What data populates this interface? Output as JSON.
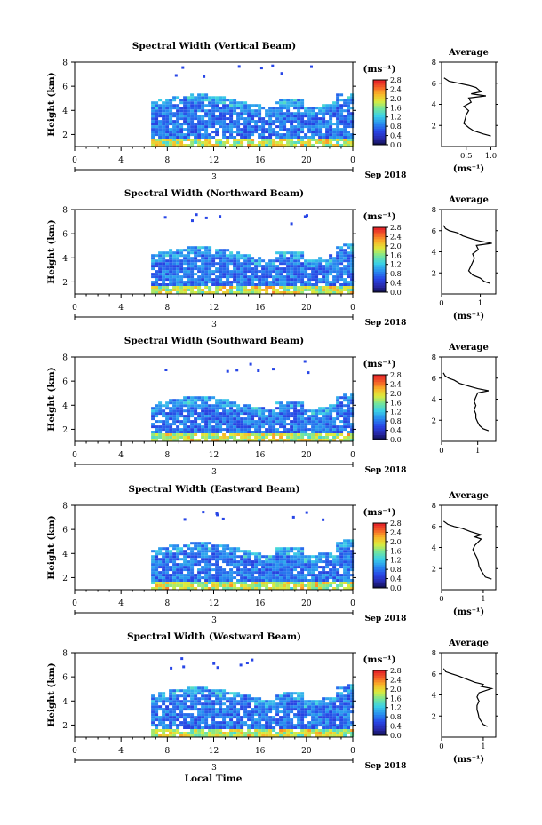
{
  "figure": {
    "xaxis_label": "Local Time",
    "date_label": "Sep 2018",
    "day_label": "3",
    "avg_title": "Average",
    "avg_unit": "(ms⁻¹)",
    "colorbar_unit": "(ms⁻¹)"
  },
  "chart_data": [
    {
      "type": "heatmap",
      "title": "Spectral Width (Vertical Beam)",
      "xlabel": "",
      "ylabel": "Height (km)",
      "xlim": [
        0,
        24
      ],
      "xticks": [
        "0",
        "4",
        "8",
        "12",
        "16",
        "20",
        "0"
      ],
      "xtick_values": [
        0,
        4,
        8,
        12,
        16,
        20,
        24
      ],
      "ylim": [
        1,
        8
      ],
      "yticks": [
        "2",
        "4",
        "6",
        "8"
      ],
      "ytick_values": [
        2,
        4,
        6,
        8
      ],
      "data_start_hour": 6.6,
      "dense_top_km": 4.6,
      "colorbar": {
        "unit": "(ms⁻¹)",
        "min": 0.0,
        "max": 2.8,
        "ticks": [
          "0.0",
          "0.4",
          "0.8",
          "1.2",
          "1.6",
          "2.0",
          "2.4",
          "2.8"
        ]
      },
      "average_profile": {
        "title": "Average",
        "xlabel": "(ms⁻¹)",
        "xlim": [
          0,
          1.1
        ],
        "xticks": [
          "0.5",
          "1.0"
        ],
        "xtick_values": [
          0.5,
          1.0
        ],
        "ylim": [
          0,
          8
        ],
        "yticks": [
          "2",
          "4",
          "6",
          "8"
        ],
        "ytick_values": [
          2,
          4,
          6,
          8
        ],
        "height_km": [
          1.0,
          1.2,
          1.5,
          1.8,
          2.2,
          2.6,
          3.0,
          3.4,
          3.8,
          4.2,
          4.6,
          4.8,
          5.0,
          5.2,
          5.4,
          5.6,
          5.8,
          6.0,
          6.2,
          6.5
        ],
        "width_ms": [
          1.0,
          0.85,
          0.65,
          0.55,
          0.45,
          0.48,
          0.5,
          0.55,
          0.45,
          0.6,
          0.55,
          0.9,
          0.6,
          0.8,
          0.75,
          0.7,
          0.55,
          0.35,
          0.15,
          0.05
        ]
      }
    },
    {
      "type": "heatmap",
      "title": "Spectral Width (Northward Beam)",
      "xlabel": "",
      "ylabel": "Height (km)",
      "xlim": [
        0,
        24
      ],
      "xticks": [
        "0",
        "4",
        "8",
        "12",
        "16",
        "20",
        "0"
      ],
      "xtick_values": [
        0,
        4,
        8,
        12,
        16,
        20,
        24
      ],
      "ylim": [
        1,
        8
      ],
      "yticks": [
        "2",
        "4",
        "6",
        "8"
      ],
      "ytick_values": [
        2,
        4,
        6,
        8
      ],
      "data_start_hour": 6.6,
      "dense_top_km": 4.2,
      "colorbar": {
        "unit": "(ms⁻¹)",
        "min": 0.0,
        "max": 2.8,
        "ticks": [
          "0.0",
          "0.4",
          "0.8",
          "1.2",
          "1.6",
          "2.0",
          "2.4",
          "2.8"
        ]
      },
      "average_profile": {
        "title": "Average",
        "xlabel": "(ms⁻¹)",
        "xlim": [
          0,
          1.4
        ],
        "xticks": [
          "0",
          "1"
        ],
        "xtick_values": [
          0,
          1
        ],
        "ylim": [
          0,
          8
        ],
        "yticks": [
          "2",
          "4",
          "6",
          "8"
        ],
        "ytick_values": [
          2,
          4,
          6,
          8
        ],
        "height_km": [
          1.0,
          1.2,
          1.5,
          1.8,
          2.2,
          2.6,
          3.0,
          3.4,
          3.8,
          4.2,
          4.6,
          4.8,
          5.0,
          5.2,
          5.5,
          5.8,
          6.0,
          6.2,
          6.5
        ],
        "width_ms": [
          1.25,
          1.1,
          1.0,
          0.8,
          0.7,
          0.75,
          0.8,
          0.85,
          0.8,
          0.95,
          0.9,
          1.3,
          1.0,
          0.8,
          0.55,
          0.4,
          0.2,
          0.1,
          0.05
        ]
      }
    },
    {
      "type": "heatmap",
      "title": "Spectral Width (Southward Beam)",
      "xlabel": "",
      "ylabel": "Height (km)",
      "xlim": [
        0,
        24
      ],
      "xticks": [
        "0",
        "4",
        "8",
        "12",
        "16",
        "20",
        "0"
      ],
      "xtick_values": [
        0,
        4,
        8,
        12,
        16,
        20,
        24
      ],
      "ylim": [
        1,
        8
      ],
      "yticks": [
        "2",
        "4",
        "6",
        "8"
      ],
      "ytick_values": [
        2,
        4,
        6,
        8
      ],
      "data_start_hour": 6.6,
      "dense_top_km": 4.0,
      "colorbar": {
        "unit": "(ms⁻¹)",
        "min": 0.0,
        "max": 2.8,
        "ticks": [
          "0.0",
          "0.4",
          "0.8",
          "1.2",
          "1.6",
          "2.0",
          "2.4",
          "2.8"
        ]
      },
      "average_profile": {
        "title": "Average",
        "xlabel": "",
        "xlim": [
          0,
          1.5
        ],
        "xticks": [
          "0",
          "1"
        ],
        "xtick_values": [
          0,
          1
        ],
        "ylim": [
          0,
          8
        ],
        "yticks": [
          "2",
          "4",
          "6",
          "8"
        ],
        "ytick_values": [
          2,
          4,
          6,
          8
        ],
        "height_km": [
          1.0,
          1.2,
          1.5,
          1.8,
          2.2,
          2.6,
          3.0,
          3.4,
          3.8,
          4.2,
          4.6,
          4.8,
          5.0,
          5.2,
          5.5,
          5.8,
          6.0,
          6.2,
          6.5
        ],
        "width_ms": [
          1.3,
          1.15,
          1.05,
          1.0,
          0.95,
          0.95,
          0.9,
          0.95,
          0.9,
          0.95,
          1.0,
          1.3,
          1.0,
          0.8,
          0.5,
          0.35,
          0.2,
          0.1,
          0.05
        ]
      }
    },
    {
      "type": "heatmap",
      "title": "Spectral Width (Eastward Beam)",
      "xlabel": "",
      "ylabel": "Height (km)",
      "xlim": [
        0,
        24
      ],
      "xticks": [
        "0",
        "4",
        "8",
        "12",
        "16",
        "20",
        "0"
      ],
      "xtick_values": [
        0,
        4,
        8,
        12,
        16,
        20,
        24
      ],
      "ylim": [
        1,
        8
      ],
      "yticks": [
        "2",
        "4",
        "6",
        "8"
      ],
      "ytick_values": [
        2,
        4,
        6,
        8
      ],
      "data_start_hour": 6.6,
      "dense_top_km": 4.2,
      "colorbar": {
        "unit": "(ms⁻¹)",
        "min": 0.0,
        "max": 2.8,
        "ticks": [
          "0.0",
          "0.4",
          "0.8",
          "1.2",
          "1.6",
          "2.0",
          "2.4",
          "2.8"
        ]
      },
      "average_profile": {
        "title": "Average",
        "xlabel": "(ms⁻¹)",
        "xlim": [
          0,
          1.3
        ],
        "xticks": [
          "0",
          "1"
        ],
        "xtick_values": [
          0,
          1
        ],
        "ylim": [
          0,
          8
        ],
        "yticks": [
          "2",
          "4",
          "6",
          "8"
        ],
        "ytick_values": [
          2,
          4,
          6,
          8
        ],
        "height_km": [
          1.0,
          1.2,
          1.5,
          1.8,
          2.2,
          2.6,
          3.0,
          3.4,
          3.8,
          4.2,
          4.6,
          4.8,
          5.0,
          5.2,
          5.5,
          5.8,
          6.0,
          6.2,
          6.5
        ],
        "width_ms": [
          1.2,
          1.05,
          1.0,
          0.95,
          0.9,
          0.88,
          0.85,
          0.8,
          0.75,
          0.8,
          0.9,
          0.95,
          0.8,
          0.95,
          0.7,
          0.5,
          0.3,
          0.15,
          0.05
        ]
      }
    },
    {
      "type": "heatmap",
      "title": "Spectral Width (Westward Beam)",
      "xlabel": "Local Time",
      "ylabel": "Height (km)",
      "xlim": [
        0,
        24
      ],
      "xticks": [
        "0",
        "4",
        "8",
        "12",
        "16",
        "20",
        "0"
      ],
      "xtick_values": [
        0,
        4,
        8,
        12,
        16,
        20,
        24
      ],
      "ylim": [
        1,
        8
      ],
      "yticks": [
        "2",
        "4",
        "6",
        "8"
      ],
      "ytick_values": [
        2,
        4,
        6,
        8
      ],
      "data_start_hour": 6.6,
      "dense_top_km": 4.4,
      "colorbar": {
        "unit": "(ms⁻¹)",
        "min": 0.0,
        "max": 2.8,
        "ticks": [
          "0.0",
          "0.4",
          "0.8",
          "1.2",
          "1.6",
          "2.0",
          "2.4",
          "2.8"
        ]
      },
      "average_profile": {
        "title": "Average",
        "xlabel": "(ms⁻¹)",
        "xlim": [
          0,
          1.3
        ],
        "xticks": [
          "0",
          "1"
        ],
        "xtick_values": [
          0,
          1
        ],
        "ylim": [
          0,
          8
        ],
        "yticks": [
          "2",
          "4",
          "6",
          "8"
        ],
        "ytick_values": [
          2,
          4,
          6,
          8
        ],
        "height_km": [
          1.0,
          1.2,
          1.5,
          1.8,
          2.2,
          2.6,
          3.0,
          3.4,
          3.8,
          4.2,
          4.6,
          4.8,
          5.0,
          5.2,
          5.5,
          5.8,
          6.0,
          6.2,
          6.5
        ],
        "width_ms": [
          1.1,
          1.0,
          0.95,
          0.9,
          0.88,
          0.85,
          0.85,
          0.9,
          0.85,
          0.9,
          1.2,
          0.95,
          1.0,
          0.8,
          0.6,
          0.4,
          0.25,
          0.1,
          0.05
        ]
      }
    }
  ]
}
